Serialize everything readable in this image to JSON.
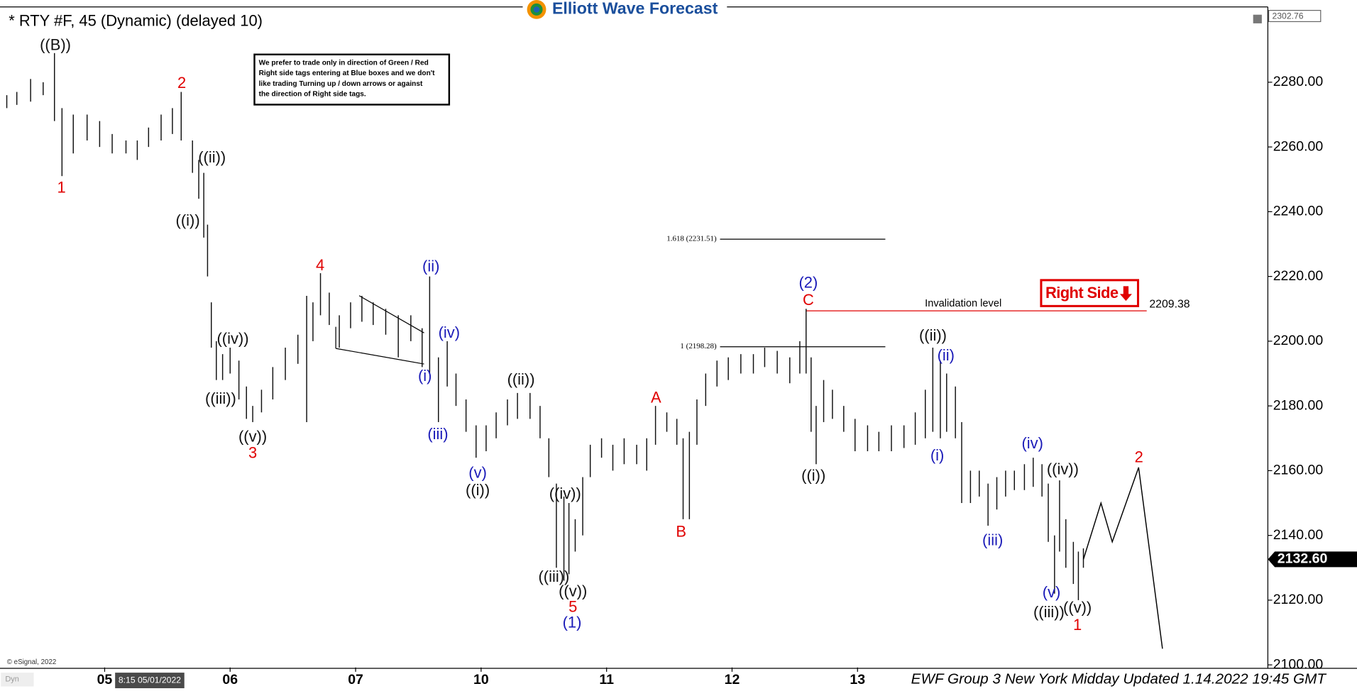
{
  "header": {
    "title": "* RTY #F, 45 (Dynamic) (delayed 10)",
    "logo": "Elliott Wave Forecast"
  },
  "note": [
    "We prefer to trade only in direction of Green / Red",
    "Right side tags entering at Blue boxes and we don't",
    "like trading Turning up / down arrows or against",
    "the direction of Right side tags."
  ],
  "footer": {
    "text": "EWF Group 3 New York Midday Updated 1.14.2022 19:45 GMT",
    "copyright": "© eSignal, 2022",
    "cursor": "8:15 05/01/2022",
    "mode": "Dyn"
  },
  "chart_data": {
    "type": "hilo",
    "color": "#111111",
    "x": [
      -0.78,
      -0.7,
      -0.59,
      -0.49,
      -0.4,
      -0.34,
      -0.25,
      -0.14,
      -0.04,
      0.06,
      0.17,
      0.26,
      0.35,
      0.45,
      0.54,
      0.61,
      0.7,
      0.75,
      0.79,
      0.82,
      0.85,
      0.89,
      0.94,
      1.0,
      1.07,
      1.13,
      1.18,
      1.25,
      1.34,
      1.44,
      1.54,
      1.61,
      1.66,
      1.72,
      1.79,
      1.87,
      1.96,
      2.05,
      2.14,
      2.24,
      2.34,
      2.44,
      2.53,
      2.59,
      2.66,
      2.73,
      2.8,
      2.88,
      2.96,
      3.04,
      3.12,
      3.21,
      3.29,
      3.39,
      3.47,
      3.54,
      3.6,
      3.66,
      3.7,
      3.75,
      3.81,
      3.87,
      3.96,
      4.05,
      4.14,
      4.24,
      4.32,
      4.39,
      4.48,
      4.56,
      4.61,
      4.66,
      4.72,
      4.79,
      4.88,
      4.97,
      5.07,
      5.17,
      5.26,
      5.36,
      5.46,
      5.54,
      5.59,
      5.63,
      5.67,
      5.73,
      5.8,
      5.89,
      5.98,
      6.08,
      6.17,
      6.27,
      6.37,
      6.46,
      6.54,
      6.6,
      6.66,
      6.71,
      6.78,
      6.83,
      6.9,
      6.97,
      7.04,
      7.11,
      7.18,
      7.25,
      7.33,
      7.4,
      7.47,
      7.52,
      7.57,
      7.61,
      7.66,
      7.72,
      7.76,
      7.8
    ],
    "high": [
      2276,
      2277,
      2281,
      2280,
      2289,
      2272,
      2270,
      2270,
      2268,
      2264,
      2262,
      2262,
      2266,
      2270,
      2272,
      2277,
      2262,
      2256,
      2252,
      2236,
      2212,
      2200,
      2196,
      2198,
      2194,
      2186,
      2180,
      2185,
      2192,
      2198,
      2202,
      2214,
      2212,
      2221,
      2215,
      2208,
      2212,
      2214,
      2212,
      2210,
      2208,
      2208,
      2204,
      2220,
      2195,
      2200,
      2190,
      2182,
      2174,
      2174,
      2178,
      2182,
      2184,
      2184,
      2180,
      2170,
      2156,
      2152,
      2150,
      2145,
      2158,
      2168,
      2170,
      2168,
      2170,
      2168,
      2170,
      2180,
      2178,
      2176,
      2170,
      2172,
      2182,
      2190,
      2194,
      2195,
      2196,
      2196,
      2198,
      2197,
      2195,
      2200,
      2210,
      2195,
      2180,
      2188,
      2185,
      2180,
      2176,
      2174,
      2172,
      2174,
      2174,
      2178,
      2185,
      2198,
      2194,
      2190,
      2186,
      2175,
      2160,
      2160,
      2156,
      2158,
      2160,
      2160,
      2162,
      2164,
      2162,
      2156,
      2140,
      2157,
      2145,
      2138,
      2135,
      2136
    ],
    "low": [
      2272,
      2273,
      2274,
      2276,
      2268,
      2251,
      2258,
      2262,
      2260,
      2258,
      2258,
      2256,
      2260,
      2262,
      2264,
      2262,
      2252,
      2244,
      2232,
      2220,
      2198,
      2188,
      2188,
      2190,
      2182,
      2176,
      2175,
      2178,
      2182,
      2188,
      2193,
      2175,
      2200,
      2208,
      2205,
      2198,
      2204,
      2206,
      2205,
      2202,
      2195,
      2200,
      2192,
      2190,
      2175,
      2186,
      2180,
      2172,
      2164,
      2166,
      2170,
      2174,
      2176,
      2176,
      2170,
      2158,
      2130,
      2126,
      2128,
      2135,
      2140,
      2158,
      2164,
      2160,
      2162,
      2162,
      2160,
      2168,
      2172,
      2168,
      2145,
      2145,
      2168,
      2180,
      2186,
      2188,
      2190,
      2190,
      2192,
      2190,
      2187,
      2190,
      2190,
      2172,
      2162,
      2175,
      2176,
      2172,
      2166,
      2166,
      2166,
      2166,
      2167,
      2168,
      2170,
      2172,
      2170,
      2172,
      2170,
      2150,
      2150,
      2152,
      2143,
      2148,
      2152,
      2154,
      2154,
      2155,
      2152,
      2138,
      2122,
      2135,
      2130,
      2125,
      2120,
      2130
    ],
    "xlim": [
      -0.834,
      9.27
    ],
    "xticks": [
      {
        "value": 0,
        "label": "05"
      },
      {
        "value": 1,
        "label": "06"
      },
      {
        "value": 2,
        "label": "07"
      },
      {
        "value": 3,
        "label": "10"
      },
      {
        "value": 4,
        "label": "11"
      },
      {
        "value": 5,
        "label": "12"
      },
      {
        "value": 6,
        "label": "13"
      }
    ],
    "ylim": [
      2099.2,
      2305.4
    ],
    "yticks": [
      {
        "value": 2100,
        "label": "2100.00"
      },
      {
        "value": 2120,
        "label": "2120.00"
      },
      {
        "value": 2140,
        "label": "2140.00"
      },
      {
        "value": 2160,
        "label": "2160.00"
      },
      {
        "value": 2180,
        "label": "2180.00"
      },
      {
        "value": 2200,
        "label": "2200.00"
      },
      {
        "value": 2220,
        "label": "2220.00"
      },
      {
        "value": 2240,
        "label": "2240.00"
      },
      {
        "value": 2260,
        "label": "2260.00"
      },
      {
        "value": 2280,
        "label": "2280.00"
      }
    ],
    "projection": {
      "x": [
        7.8,
        7.94,
        8.03,
        8.24,
        8.43
      ],
      "values": [
        2132.6,
        2150,
        2138,
        2161,
        2105
      ]
    },
    "fib_levels": [
      {
        "value": 2231.51,
        "label": "1.618 (2231.51)"
      },
      {
        "value": 2198.28,
        "label": "1 (2198.28)"
      }
    ],
    "invalidation": {
      "text": "Invalidation level",
      "value": 2209.38,
      "label": "2209.38",
      "color": "#e00000"
    },
    "right_side": {
      "text": "Right Side",
      "color": "#e00000"
    },
    "last_price": {
      "value": 2132.6,
      "label": "2132.60"
    },
    "top_price": {
      "value": 2302.76,
      "label": "2302.76"
    },
    "annotations": [
      {
        "text": "((B))",
        "color": "#111111"
      },
      {
        "text": "1",
        "color": "#e00000"
      },
      {
        "text": "2",
        "color": "#e00000"
      },
      {
        "text": "((ii))",
        "color": "#111111"
      },
      {
        "text": "((i))",
        "color": "#111111"
      },
      {
        "text": "((iv))",
        "color": "#111111"
      },
      {
        "text": "((iii))",
        "color": "#111111"
      },
      {
        "text": "((v))",
        "color": "#111111"
      },
      {
        "text": "3",
        "color": "#e00000"
      },
      {
        "text": "4",
        "color": "#e00000"
      },
      {
        "text": "(ii)",
        "color": "#1a1ab8"
      },
      {
        "text": "(iv)",
        "color": "#1a1ab8"
      },
      {
        "text": "(i)",
        "color": "#1a1ab8"
      },
      {
        "text": "(iii)",
        "color": "#1a1ab8"
      },
      {
        "text": "(v)",
        "color": "#1a1ab8"
      },
      {
        "text": "((i))",
        "color": "#111111"
      },
      {
        "text": "((ii))",
        "color": "#111111"
      },
      {
        "text": "((iv))",
        "color": "#111111"
      },
      {
        "text": "((iii))",
        "color": "#111111"
      },
      {
        "text": "((v))",
        "color": "#111111"
      },
      {
        "text": "5",
        "color": "#e00000"
      },
      {
        "text": "(1)",
        "color": "#1a1ab8"
      },
      {
        "text": "A",
        "color": "#e00000"
      },
      {
        "text": "B",
        "color": "#e00000"
      },
      {
        "text": "(2)",
        "color": "#1a1ab8"
      },
      {
        "text": "C",
        "color": "#e00000"
      },
      {
        "text": "((ii))",
        "color": "#111111"
      },
      {
        "text": "(ii)",
        "color": "#1a1ab8"
      },
      {
        "text": "(i)",
        "color": "#1a1ab8"
      },
      {
        "text": "((i))",
        "color": "#111111"
      },
      {
        "text": "(iv)",
        "color": "#1a1ab8"
      },
      {
        "text": "((iv))",
        "color": "#111111"
      },
      {
        "text": "(iii)",
        "color": "#1a1ab8"
      },
      {
        "text": "(v)",
        "color": "#1a1ab8"
      },
      {
        "text": "((iii))",
        "color": "#111111"
      },
      {
        "text": "((v))",
        "color": "#111111"
      },
      {
        "text": "1",
        "color": "#e00000"
      },
      {
        "text": "2",
        "color": "#e00000"
      }
    ]
  }
}
